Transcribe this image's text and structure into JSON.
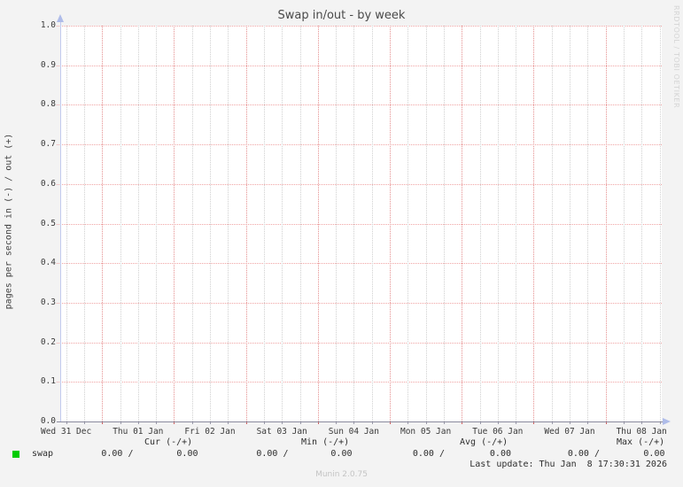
{
  "title": "Swap in/out - by week",
  "watermark": "RRDTOOL / TOBI OETIKER",
  "footer": {
    "last_update": "Last update: Thu Jan  8 17:30:31 2026",
    "version": "Munin 2.0.75"
  },
  "chart_data": {
    "type": "line",
    "title": "Swap in/out - by week",
    "xlabel": "",
    "ylabel": "pages per second in (-) / out (+)",
    "ylim": [
      0.0,
      1.0
    ],
    "grid": true,
    "legend_position": "bottom",
    "y_ticks": [
      "0.0",
      "0.1",
      "0.2",
      "0.3",
      "0.4",
      "0.5",
      "0.6",
      "0.7",
      "0.8",
      "0.9",
      "1.0"
    ],
    "x_ticks": [
      "Wed 31 Dec",
      "Thu 01 Jan",
      "Fri 02 Jan",
      "Sat 03 Jan",
      "Sun 04 Jan",
      "Mon 05 Jan",
      "Tue 06 Jan",
      "Wed 07 Jan",
      "Thu 08 Jan"
    ],
    "series": [
      {
        "name": "swap",
        "color": "#00cc00",
        "values": [
          0.0,
          0.0,
          0.0,
          0.0,
          0.0,
          0.0,
          0.0,
          0.0,
          0.0
        ]
      }
    ]
  },
  "legend": {
    "columns": [
      "Cur (-/+)",
      "Min (-/+)",
      "Avg (-/+)",
      "Max (-/+)"
    ],
    "rows": [
      {
        "label": "swap",
        "color": "#00cc00",
        "cur": [
          "0.00",
          "0.00"
        ],
        "min": [
          "0.00",
          "0.00"
        ],
        "avg": [
          "0.00",
          "0.00"
        ],
        "max": [
          "0.00",
          "0.00"
        ]
      }
    ]
  },
  "colors": {
    "page_bg": "#f3f3f3",
    "plot_bg": "#ffffff",
    "grid_major": "#f0a4a4",
    "grid_minor": "#d0d0d0",
    "axis": "#8a8a9e",
    "arrow": "#afbce9",
    "series_green": "#00cc00"
  }
}
